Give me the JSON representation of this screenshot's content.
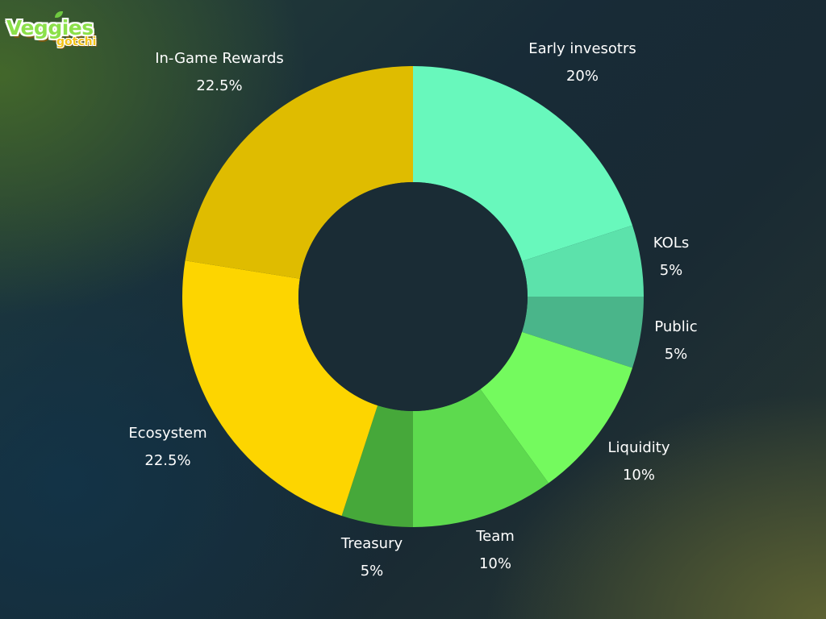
{
  "logo": {
    "name": "Veggies",
    "sub": "gotchi"
  },
  "chart_data": {
    "type": "pie",
    "donut": true,
    "unit": "%",
    "slices": [
      {
        "label": "Early invesotrs",
        "value": 20,
        "value_label": "20%",
        "color": "#68f8bc"
      },
      {
        "label": "KOLs",
        "value": 5,
        "value_label": "5%",
        "color": "#5ce2ab"
      },
      {
        "label": "Public",
        "value": 5,
        "value_label": "5%",
        "color": "#4ab58a"
      },
      {
        "label": "Liquidity",
        "value": 10,
        "value_label": "10%",
        "color": "#74fa5e"
      },
      {
        "label": "Team",
        "value": 10,
        "value_label": "10%",
        "color": "#5dda4e"
      },
      {
        "label": "Treasury",
        "value": 5,
        "value_label": "5%",
        "color": "#46a83a"
      },
      {
        "label": "Ecosystem",
        "value": 22.5,
        "value_label": "22.5%",
        "color": "#fdd500"
      },
      {
        "label": "In-Game Rewards",
        "value": 22.5,
        "value_label": "22.5%",
        "color": "#dfbc00"
      }
    ],
    "center_color": "#1a2c35",
    "legend": "none"
  }
}
